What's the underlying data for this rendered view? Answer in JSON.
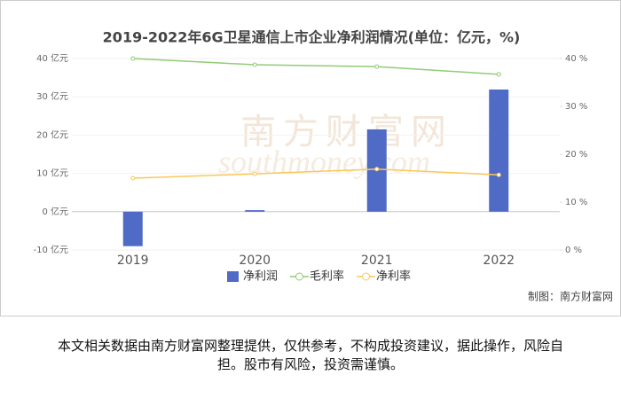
{
  "chart_data": {
    "type": "bar-line",
    "title": "2019-2022年6G卫星通信上市企业净利润情况(单位：亿元，%)",
    "categories": [
      "2019",
      "2020",
      "2021",
      "2022"
    ],
    "series": [
      {
        "name": "净利润",
        "type": "bar",
        "color": "#4f6bc6",
        "values": [
          -9,
          0.4,
          21.5,
          31.9
        ]
      },
      {
        "name": "毛利率",
        "type": "line",
        "axis": "y2",
        "color": "#91cc75",
        "values": [
          40,
          38.7,
          38.3,
          36.7
        ]
      },
      {
        "name": "净利率",
        "type": "line",
        "axis": "y2",
        "color": "#fac858",
        "values": [
          15,
          15.9,
          16.9,
          15.7
        ]
      }
    ],
    "ylim": [
      -10,
      40
    ],
    "yticks": [
      {
        "value": -10,
        "label": "-10 亿元"
      },
      {
        "value": 0,
        "label": "0 亿元"
      },
      {
        "value": 10,
        "label": "10 亿元"
      },
      {
        "value": 20,
        "label": "20 亿元"
      },
      {
        "value": 30,
        "label": "30 亿元"
      },
      {
        "value": 40,
        "label": "40 亿元"
      }
    ],
    "y2lim": [
      0,
      40
    ],
    "y2ticks": [
      {
        "value": 0,
        "label": "0 %"
      },
      {
        "value": 10,
        "label": "10 %"
      },
      {
        "value": 20,
        "label": "20 %"
      },
      {
        "value": 30,
        "label": "30 %"
      },
      {
        "value": 40,
        "label": "40 %"
      }
    ],
    "grid": true,
    "legend": "bottom",
    "watermark": [
      "南方财富网",
      "southmoney.com"
    ],
    "credit": "制图：南方财富网"
  },
  "disclaimer": "本文相关数据由南方财富网整理提供，仅供参考，不构成投资建议，据此操作，风险自担。股市有风险，投资需谨慎。"
}
